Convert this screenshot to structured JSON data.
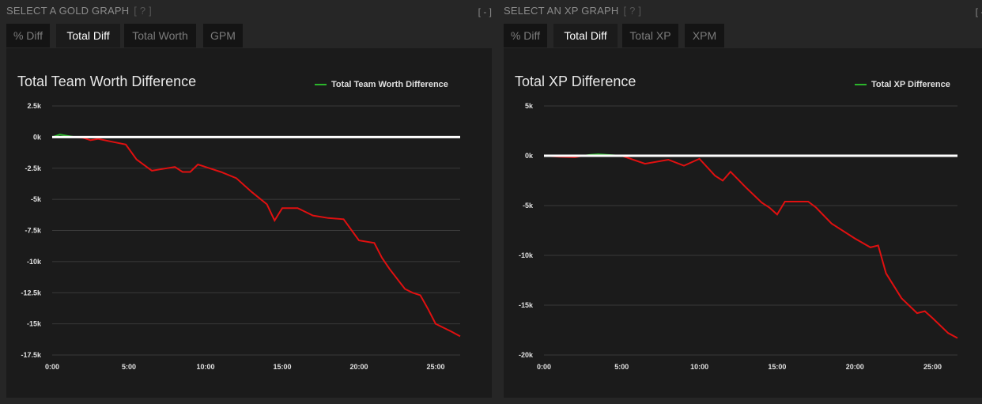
{
  "gold": {
    "section_title": "SELECT A GOLD GRAPH",
    "help": "[ ? ]",
    "collapse": "[ - ]",
    "tabs": [
      "% Diff",
      "Total Diff",
      "Total Worth",
      "GPM"
    ],
    "active_tab": 1,
    "chart_title": "Total Team Worth Difference",
    "legend": "Total Team Worth Difference"
  },
  "xp": {
    "section_title": "SELECT AN XP GRAPH",
    "help": "[ ? ]",
    "collapse": "[ - ]",
    "tabs": [
      "% Diff",
      "Total Diff",
      "Total XP",
      "XPM"
    ],
    "active_tab": 1,
    "chart_title": "Total XP Difference",
    "legend": "Total XP Difference"
  },
  "colors": {
    "positive": "#2bb52b",
    "negative": "#e01010",
    "zero_line": "#ffffff",
    "grid": "#3a3a3a"
  },
  "chart_data": [
    {
      "type": "line",
      "title": "Total Team Worth Difference",
      "series": [
        {
          "name": "Total Team Worth Difference",
          "x_minutes": [
            0,
            0.5,
            1,
            1.5,
            2,
            2.5,
            3,
            4,
            4.8,
            5.5,
            6.5,
            7,
            8,
            8.5,
            9,
            9.5,
            10,
            11,
            12,
            13,
            14,
            14.5,
            15,
            15.5,
            16,
            17,
            18,
            19,
            20,
            21,
            21.5,
            22,
            23,
            23.5,
            24,
            24.5,
            25,
            25.5,
            26,
            26.6
          ],
          "y": [
            0,
            200,
            100,
            0,
            -50,
            -250,
            -150,
            -400,
            -600,
            -1800,
            -2700,
            -2600,
            -2400,
            -2800,
            -2800,
            -2200,
            -2400,
            -2800,
            -3300,
            -4400,
            -5400,
            -6700,
            -5700,
            -5700,
            -5700,
            -6300,
            -6500,
            -6600,
            -8300,
            -8500,
            -9700,
            -10600,
            -12200,
            -12500,
            -12700,
            -13800,
            -15000,
            -15300,
            -15600,
            -16000
          ]
        }
      ],
      "xticks": [
        "0:00",
        "5:00",
        "10:00",
        "15:00",
        "20:00",
        "25:00"
      ],
      "yticks": [
        "2.5k",
        "0k",
        "-2.5k",
        "-5k",
        "-7.5k",
        "-10k",
        "-12.5k",
        "-15k",
        "-17.5k"
      ],
      "ylim": [
        -17500,
        2500
      ],
      "xlim_minutes": [
        0,
        26.6
      ],
      "grid": true,
      "legend_position": "top-right"
    },
    {
      "type": "line",
      "title": "Total XP Difference",
      "series": [
        {
          "name": "Total XP Difference",
          "x_minutes": [
            0,
            1,
            2,
            2.5,
            3,
            3.5,
            4,
            5,
            6.5,
            8,
            9,
            10,
            11,
            11.5,
            12,
            13,
            14,
            14.5,
            15,
            15.5,
            16,
            17,
            17.5,
            18.5,
            20,
            21,
            21.5,
            22,
            23,
            24,
            24.5,
            25,
            26,
            26.6
          ],
          "y": [
            0,
            -100,
            -150,
            0,
            100,
            150,
            100,
            0,
            -800,
            -400,
            -1000,
            -300,
            -2000,
            -2500,
            -1600,
            -3200,
            -4700,
            -5200,
            -5900,
            -4600,
            -4600,
            -4600,
            -5200,
            -6800,
            -8300,
            -9200,
            -9000,
            -11800,
            -14300,
            -15800,
            -15600,
            -16300,
            -17800,
            -18300
          ]
        }
      ],
      "xticks": [
        "0:00",
        "5:00",
        "10:00",
        "15:00",
        "20:00",
        "25:00"
      ],
      "yticks": [
        "5k",
        "0k",
        "-5k",
        "-10k",
        "-15k",
        "-20k"
      ],
      "ylim": [
        -20000,
        5000
      ],
      "xlim_minutes": [
        0,
        26.6
      ],
      "grid": true,
      "legend_position": "top-right"
    }
  ]
}
